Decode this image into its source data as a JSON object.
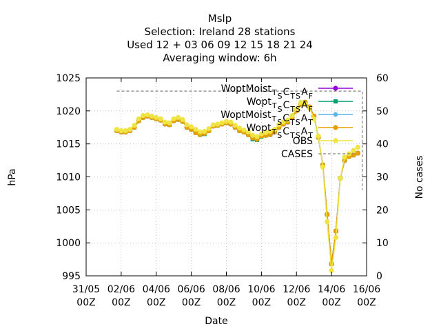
{
  "chart_data": {
    "type": "line",
    "title_lines": [
      "Mslp",
      "Selection: Ireland      28 stations",
      "Used  12 + 03 06 09 12 15 18 21 24",
      "Averaging window:  6h"
    ],
    "xlabel": "Date",
    "ylabel": "hPa",
    "y2label": "No cases",
    "grid": true,
    "legend_position": "top-right",
    "xlim": [
      0,
      16
    ],
    "ylim": [
      995,
      1025
    ],
    "y2lim": [
      0,
      60
    ],
    "x_tick_labels": [
      [
        "31/05",
        "00Z"
      ],
      [
        "02/06",
        "00Z"
      ],
      [
        "04/06",
        "00Z"
      ],
      [
        "06/06",
        "00Z"
      ],
      [
        "08/06",
        "00Z"
      ],
      [
        "10/06",
        "00Z"
      ],
      [
        "12/06",
        "00Z"
      ],
      [
        "14/06",
        "00Z"
      ],
      [
        "16/06",
        "00Z"
      ]
    ],
    "x_tick_positions": [
      0,
      2,
      4,
      6,
      8,
      10,
      12,
      14,
      16
    ],
    "y_ticks": [
      995,
      1000,
      1005,
      1010,
      1015,
      1020,
      1025
    ],
    "y2_ticks": [
      0,
      10,
      20,
      30,
      40,
      50,
      60
    ],
    "x": [
      1.75,
      2.0,
      2.25,
      2.5,
      2.75,
      3.0,
      3.25,
      3.5,
      3.75,
      4.0,
      4.25,
      4.5,
      4.75,
      5.0,
      5.25,
      5.5,
      5.75,
      6.0,
      6.25,
      6.5,
      6.75,
      7.0,
      7.25,
      7.5,
      7.75,
      8.0,
      8.25,
      8.5,
      8.75,
      9.0,
      9.25,
      9.5,
      9.75,
      10.0,
      10.25,
      10.5,
      10.75,
      11.0,
      11.25,
      11.5,
      11.75,
      12.0,
      12.25,
      12.5,
      12.75,
      13.0,
      13.25,
      13.5,
      13.75,
      14.0,
      14.25,
      14.5,
      14.75,
      15.0,
      15.25,
      15.5
    ],
    "series": [
      {
        "name": "WoptMoist_TSC_TSA_F",
        "label_main": "WoptMoist",
        "label_sub": "T S C T S A F",
        "color": "#9400d3",
        "marker": "circle",
        "values": [
          1017.0,
          1016.8,
          1016.8,
          1017.0,
          1017.5,
          1018.5,
          1019.0,
          1019.2,
          1019.0,
          1018.8,
          1018.6,
          1018.0,
          1017.9,
          1018.5,
          1018.7,
          1018.4,
          1017.5,
          1017.2,
          1016.7,
          1016.4,
          1016.6,
          1017.0,
          1017.7,
          1017.8,
          1018.0,
          1018.2,
          1018.0,
          1017.5,
          1017.0,
          1016.8,
          1016.4,
          1015.9,
          1015.7,
          1016.2,
          1016.3,
          1016.4,
          1016.8,
          1017.5,
          1018.0,
          1018.3,
          1019.0,
          1020.0,
          1021.0,
          1021.3,
          1020.6,
          1019.2,
          1016.0,
          1011.8,
          1004.3,
          996.8,
          1001.8,
          1009.8,
          1012.5,
          1013.1,
          1013.3,
          1013.6
        ]
      },
      {
        "name": "Wopt_TSC_TSA_F",
        "label_main": "Wopt",
        "label_sub": "T S C T S A F",
        "color": "#009e73",
        "marker": "square",
        "values": [
          1017.0,
          1016.8,
          1016.8,
          1017.0,
          1017.5,
          1018.5,
          1019.0,
          1019.2,
          1019.0,
          1018.8,
          1018.6,
          1018.0,
          1017.9,
          1018.5,
          1018.7,
          1018.4,
          1017.5,
          1017.2,
          1016.7,
          1016.4,
          1016.5,
          1017.0,
          1017.7,
          1017.8,
          1018.0,
          1018.2,
          1018.0,
          1017.5,
          1017.0,
          1016.8,
          1016.4,
          1015.7,
          1015.6,
          1016.1,
          1016.3,
          1016.4,
          1016.8,
          1017.5,
          1018.0,
          1018.3,
          1019.0,
          1020.0,
          1021.0,
          1021.3,
          1020.6,
          1019.2,
          1016.0,
          1011.8,
          1004.3,
          996.8,
          1001.8,
          1009.8,
          1012.5,
          1013.1,
          1013.3,
          1013.6
        ]
      },
      {
        "name": "WoptMoist_TSC_TSA_T",
        "label_main": "WoptMoist",
        "label_sub": "T S C T S A T",
        "color": "#56b4e9",
        "marker": "star",
        "values": [
          1017.0,
          1016.8,
          1016.8,
          1017.0,
          1017.5,
          1018.5,
          1019.0,
          1019.2,
          1019.0,
          1018.8,
          1018.6,
          1018.0,
          1017.9,
          1018.5,
          1018.7,
          1018.4,
          1017.5,
          1017.2,
          1016.7,
          1016.4,
          1016.6,
          1017.0,
          1017.7,
          1017.8,
          1018.0,
          1018.2,
          1018.0,
          1017.5,
          1017.0,
          1016.8,
          1016.4,
          1015.9,
          1015.7,
          1016.2,
          1016.3,
          1016.4,
          1016.8,
          1017.5,
          1018.0,
          1018.3,
          1019.0,
          1020.0,
          1021.0,
          1021.3,
          1020.6,
          1019.2,
          1016.0,
          1011.8,
          1004.3,
          996.8,
          1001.8,
          1009.8,
          1012.5,
          1013.1,
          1013.3,
          1013.6
        ]
      },
      {
        "name": "Wopt_TSC_TSA_T",
        "label_main": "Wopt",
        "label_sub": "T S C T S A T",
        "color": "#e69f00",
        "marker": "circle",
        "values": [
          1017.0,
          1016.8,
          1016.8,
          1017.0,
          1017.5,
          1018.5,
          1019.0,
          1019.2,
          1019.0,
          1018.8,
          1018.6,
          1018.0,
          1017.9,
          1018.5,
          1018.7,
          1018.4,
          1017.5,
          1017.2,
          1016.7,
          1016.4,
          1016.6,
          1017.0,
          1017.7,
          1017.8,
          1018.0,
          1018.2,
          1018.0,
          1017.5,
          1017.0,
          1016.8,
          1016.4,
          1015.9,
          1015.7,
          1016.2,
          1016.3,
          1016.4,
          1016.8,
          1017.5,
          1018.0,
          1018.3,
          1019.0,
          1020.0,
          1021.0,
          1021.3,
          1020.6,
          1019.2,
          1016.0,
          1011.8,
          1004.3,
          996.8,
          1001.8,
          1009.8,
          1012.5,
          1013.1,
          1013.3,
          1013.6
        ]
      },
      {
        "name": "OBS",
        "label_main": "OBS",
        "label_sub": "",
        "color": "#f0e442",
        "marker": "circle",
        "values": [
          1017.2,
          1017.0,
          1017.0,
          1017.2,
          1017.8,
          1018.8,
          1019.3,
          1019.4,
          1019.2,
          1019.0,
          1018.8,
          1018.3,
          1018.2,
          1018.8,
          1019.0,
          1018.7,
          1017.9,
          1017.6,
          1017.2,
          1016.8,
          1016.9,
          1017.3,
          1017.9,
          1018.0,
          1018.2,
          1018.4,
          1018.3,
          1017.8,
          1017.4,
          1017.1,
          1016.8,
          1016.3,
          1016.1,
          1016.5,
          1016.7,
          1016.9,
          1017.2,
          1017.9,
          1018.3,
          1018.6,
          1019.3,
          1020.3,
          1021.3,
          1021.0,
          1020.4,
          1018.8,
          1016.2,
          1011.5,
          1003.2,
          995.8,
          1000.8,
          1009.8,
          1013.0,
          1013.5,
          1014.0,
          1014.5
        ]
      }
    ],
    "cases": {
      "name": "CASES",
      "color": "#808080",
      "x": [
        1.75,
        15.75
      ],
      "values": [
        56,
        56
      ],
      "drop_value": 26
    }
  }
}
